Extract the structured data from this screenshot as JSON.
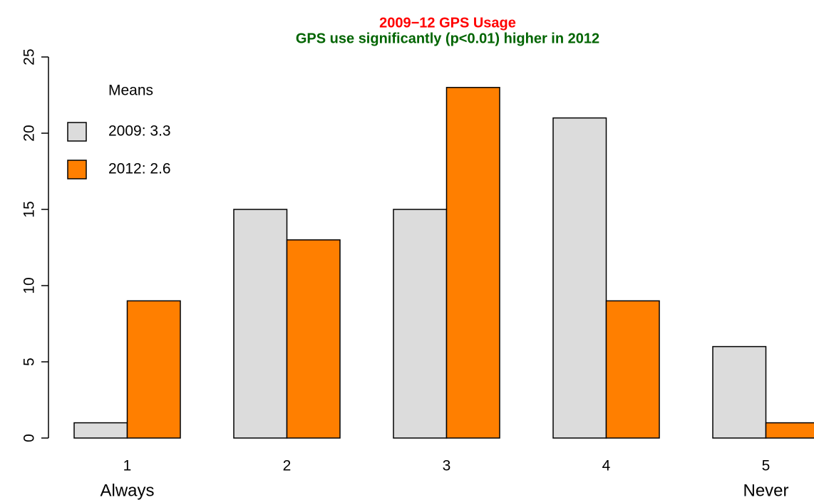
{
  "chart_data": {
    "type": "bar",
    "title": "2009−12 GPS Usage",
    "title_color": "#ff0000",
    "subtitle": "GPS use significantly (p<0.01) higher in 2012",
    "subtitle_color": "#006400",
    "categories": [
      "1",
      "2",
      "3",
      "4",
      "5"
    ],
    "category_descriptions": [
      "Always",
      null,
      null,
      null,
      "Never"
    ],
    "legend_title": "Means",
    "legend_position": "top-left",
    "series": [
      {
        "name": "2009: 3.3",
        "color": "#dcdcdc",
        "values": [
          1,
          15,
          15,
          21,
          6
        ]
      },
      {
        "name": "2012: 2.6",
        "color": "#ff7f00",
        "values": [
          9,
          13,
          23,
          9,
          1
        ]
      }
    ],
    "ylim": [
      0,
      25
    ],
    "yticks": [
      0,
      5,
      10,
      15,
      20,
      25
    ],
    "grid": false
  }
}
